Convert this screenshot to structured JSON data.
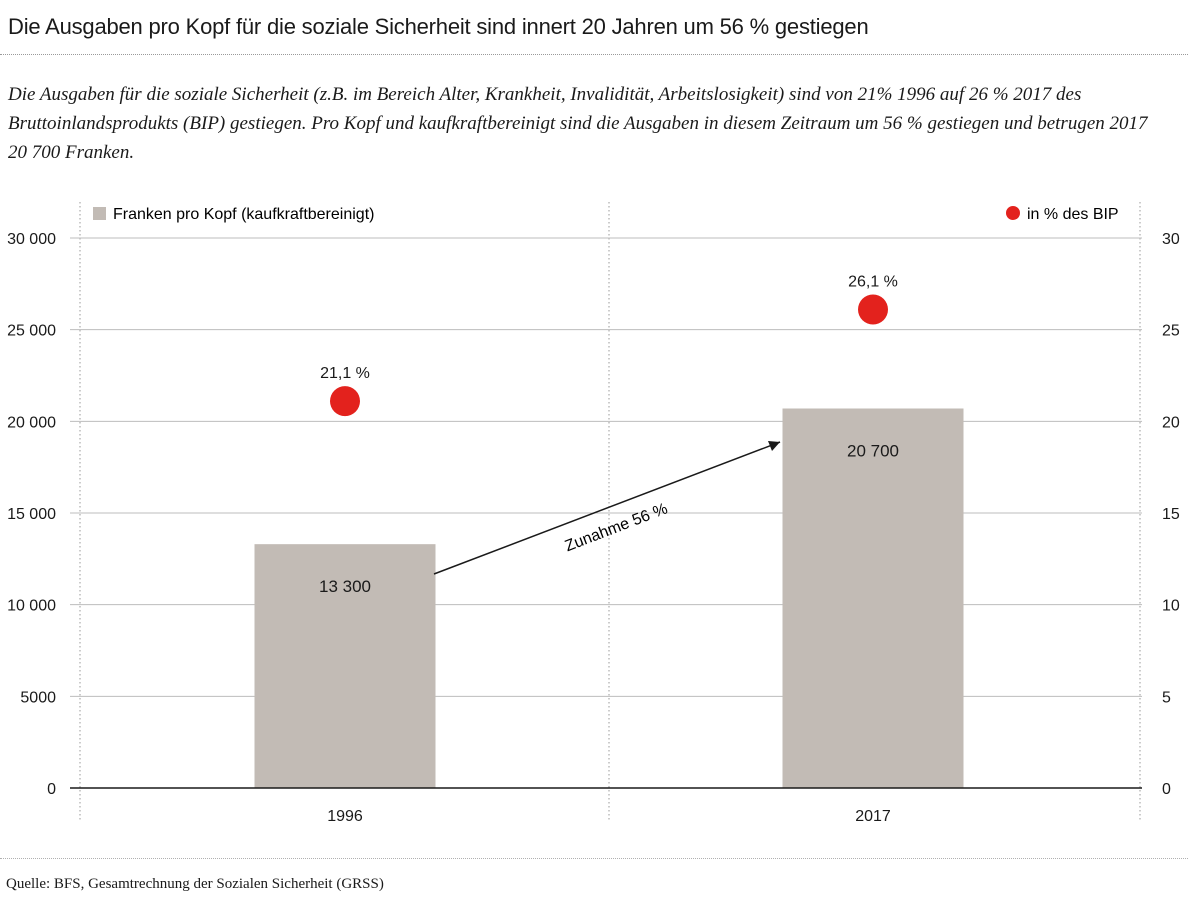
{
  "header": {
    "title": "Die Ausgaben pro Kopf für die soziale Sicherheit sind innert 20 Jahren um 56 % gestiegen",
    "subtitle": "Die Ausgaben für die soziale Sicherheit (z.B. im Bereich Alter, Krankheit, Invalidität, Arbeitslosigkeit) sind von 21% 1996 auf 26 % 2017 des Bruttoinlandsprodukts (BIP) gestiegen. Pro Kopf und kaufkraftbereinigt sind die Ausgaben in diesem Zeitraum um 56 % gestiegen und betrugen 2017 20 700 Franken."
  },
  "footer": {
    "source": "Quelle: BFS, Gesamtrechnung der Sozialen Sicherheit (GRSS)"
  },
  "colors": {
    "bar": "#c2bbb5",
    "dot": "#e3221d",
    "grid": "#bdbdbd",
    "axis": "#1a1a1a"
  },
  "chart_data": {
    "type": "bar",
    "categories": [
      "1996",
      "2017"
    ],
    "series": [
      {
        "name": "Franken pro Kopf (kaufkraftbereinigt)",
        "axis": "left",
        "type": "bar",
        "values": [
          13300,
          20700
        ],
        "labels": [
          "13 300",
          "20 700"
        ]
      },
      {
        "name": "in % des BIP",
        "axis": "right",
        "type": "scatter",
        "values": [
          21.1,
          26.1
        ],
        "labels": [
          "21,1 %",
          "26,1 %"
        ]
      }
    ],
    "left_axis": {
      "range": [
        0,
        30000
      ],
      "ticks": [
        "0",
        "5000",
        "10 000",
        "15 000",
        "20 000",
        "25 000",
        "30 000"
      ]
    },
    "right_axis": {
      "range": [
        0,
        30
      ],
      "ticks": [
        "0",
        "5",
        "10",
        "15",
        "20",
        "25",
        "30"
      ]
    },
    "annotation": {
      "text": "Zunahme 56 %"
    },
    "legend_position": "top"
  }
}
